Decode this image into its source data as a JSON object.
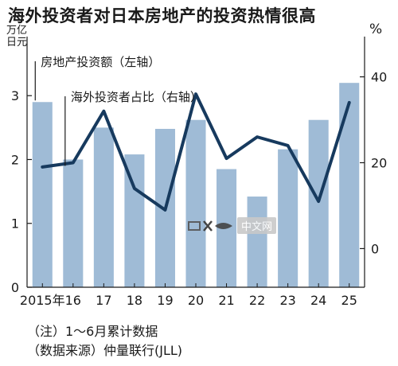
{
  "title": "海外投资者对日本房地产的投资热情很高",
  "unit_left": "万亿日元",
  "unit_right": "%",
  "notes": [
    "（注）1～6月累计数据",
    "（数据来源）仲量联行(JLL)"
  ],
  "watermark_text": "中文网",
  "colors": {
    "bar": "#9fbbd6",
    "line": "#173a5e",
    "axis": "#1a1a1a"
  },
  "chart_data": {
    "type": "bar+line",
    "categories": [
      "2015年",
      "16",
      "17",
      "18",
      "19",
      "20",
      "21",
      "22",
      "23",
      "24",
      "25"
    ],
    "series": [
      {
        "name": "房地产投资额（左轴）",
        "type": "bar",
        "axis": "left",
        "values": [
          2.9,
          2.0,
          2.5,
          2.08,
          2.48,
          2.62,
          1.85,
          1.42,
          2.16,
          2.62,
          3.2
        ]
      },
      {
        "name": "海外投资者占比（右轴）",
        "type": "line",
        "axis": "right",
        "values": [
          19,
          20,
          32,
          14,
          9,
          36,
          21,
          26,
          24,
          11,
          34
        ]
      }
    ],
    "left_axis": {
      "ticks": [
        0,
        1,
        2,
        3
      ],
      "ylim": [
        0,
        3.9
      ]
    },
    "right_axis": {
      "ticks": [
        0,
        20,
        40
      ],
      "ylim": [
        -9,
        49
      ]
    },
    "grid": false,
    "legend_placement": "top-left"
  }
}
